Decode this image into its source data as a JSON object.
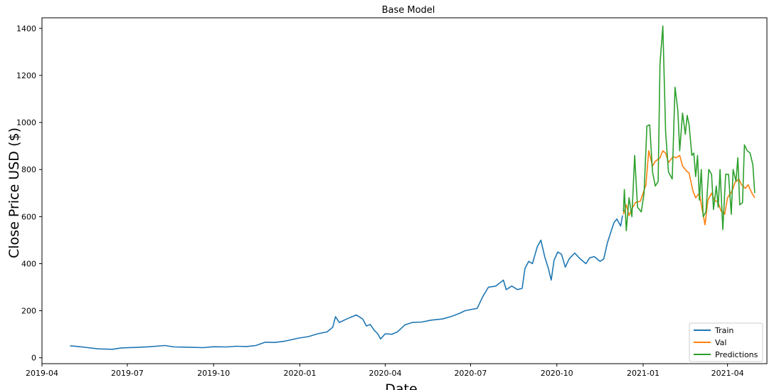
{
  "chart_data": {
    "type": "line",
    "title": "Base Model",
    "xlabel": "Date",
    "ylabel": "Close Price USD ($)",
    "xlim": [
      "2019-04-01",
      "2021-05-13"
    ],
    "ylim": [
      -25,
      1445
    ],
    "x_ticks": [
      "2019-04-01",
      "2019-07-01",
      "2019-10-01",
      "2020-01-01",
      "2020-04-01",
      "2020-07-01",
      "2020-10-01",
      "2021-01-01",
      "2021-04-01"
    ],
    "x_tick_labels": [
      "2019-04",
      "2019-07",
      "2019-10",
      "2020-01",
      "2020-04",
      "2020-07",
      "2020-10",
      "2021-01",
      "2021-04"
    ],
    "y_ticks": [
      0,
      200,
      400,
      600,
      800,
      1000,
      1200,
      1400
    ],
    "y_tick_labels": [
      "0",
      "200",
      "400",
      "600",
      "800",
      "1000",
      "1200",
      "1400"
    ],
    "grid": false,
    "legend_position": "bottom-right",
    "series": [
      {
        "name": "Train",
        "color": "#1f77b4",
        "points": [
          [
            "2019-05-01",
            51
          ],
          [
            "2019-05-10",
            48
          ],
          [
            "2019-05-20",
            43
          ],
          [
            "2019-05-31",
            38
          ],
          [
            "2019-06-15",
            36
          ],
          [
            "2019-06-25",
            42
          ],
          [
            "2019-07-10",
            44
          ],
          [
            "2019-07-25",
            47
          ],
          [
            "2019-08-10",
            52
          ],
          [
            "2019-08-20",
            46
          ],
          [
            "2019-09-05",
            45
          ],
          [
            "2019-09-20",
            43
          ],
          [
            "2019-10-01",
            47
          ],
          [
            "2019-10-15",
            46
          ],
          [
            "2019-10-25",
            49
          ],
          [
            "2019-11-05",
            48
          ],
          [
            "2019-11-15",
            52
          ],
          [
            "2019-11-25",
            66
          ],
          [
            "2019-12-05",
            65
          ],
          [
            "2019-12-15",
            70
          ],
          [
            "2019-12-31",
            84
          ],
          [
            "2020-01-10",
            90
          ],
          [
            "2020-01-20",
            102
          ],
          [
            "2020-01-30",
            110
          ],
          [
            "2020-02-05",
            130
          ],
          [
            "2020-02-08",
            175
          ],
          [
            "2020-02-12",
            150
          ],
          [
            "2020-02-20",
            165
          ],
          [
            "2020-03-01",
            182
          ],
          [
            "2020-03-08",
            165
          ],
          [
            "2020-03-12",
            135
          ],
          [
            "2020-03-16",
            142
          ],
          [
            "2020-03-20",
            118
          ],
          [
            "2020-03-24",
            102
          ],
          [
            "2020-03-27",
            80
          ],
          [
            "2020-04-01",
            102
          ],
          [
            "2020-04-08",
            100
          ],
          [
            "2020-04-14",
            110
          ],
          [
            "2020-04-22",
            140
          ],
          [
            "2020-04-30",
            150
          ],
          [
            "2020-05-10",
            152
          ],
          [
            "2020-05-20",
            160
          ],
          [
            "2020-06-01",
            165
          ],
          [
            "2020-06-10",
            175
          ],
          [
            "2020-06-20",
            190
          ],
          [
            "2020-06-25",
            200
          ],
          [
            "2020-07-01",
            205
          ],
          [
            "2020-07-08",
            210
          ],
          [
            "2020-07-14",
            260
          ],
          [
            "2020-07-20",
            300
          ],
          [
            "2020-07-28",
            305
          ],
          [
            "2020-08-05",
            330
          ],
          [
            "2020-08-08",
            290
          ],
          [
            "2020-08-14",
            305
          ],
          [
            "2020-08-20",
            290
          ],
          [
            "2020-08-25",
            295
          ],
          [
            "2020-08-28",
            380
          ],
          [
            "2020-09-01",
            410
          ],
          [
            "2020-09-05",
            400
          ],
          [
            "2020-09-10",
            470
          ],
          [
            "2020-09-14",
            500
          ],
          [
            "2020-09-18",
            430
          ],
          [
            "2020-09-22",
            380
          ],
          [
            "2020-09-25",
            330
          ],
          [
            "2020-09-28",
            415
          ],
          [
            "2020-10-02",
            450
          ],
          [
            "2020-10-06",
            440
          ],
          [
            "2020-10-10",
            385
          ],
          [
            "2020-10-14",
            420
          ],
          [
            "2020-10-20",
            445
          ],
          [
            "2020-10-26",
            420
          ],
          [
            "2020-11-01",
            400
          ],
          [
            "2020-11-05",
            425
          ],
          [
            "2020-11-10",
            430
          ],
          [
            "2020-11-16",
            410
          ],
          [
            "2020-11-20",
            420
          ],
          [
            "2020-11-24",
            490
          ],
          [
            "2020-11-28",
            540
          ],
          [
            "2020-12-01",
            575
          ],
          [
            "2020-12-04",
            590
          ],
          [
            "2020-12-08",
            560
          ],
          [
            "2020-12-10",
            605
          ]
        ]
      },
      {
        "name": "Val",
        "color": "#ff7f0e",
        "points": [
          [
            "2020-12-11",
            610
          ],
          [
            "2020-12-14",
            650
          ],
          [
            "2020-12-17",
            605
          ],
          [
            "2020-12-21",
            640
          ],
          [
            "2020-12-24",
            660
          ],
          [
            "2020-12-29",
            665
          ],
          [
            "2021-01-04",
            735
          ],
          [
            "2021-01-07",
            880
          ],
          [
            "2021-01-11",
            815
          ],
          [
            "2021-01-14",
            835
          ],
          [
            "2021-01-19",
            850
          ],
          [
            "2021-01-22",
            880
          ],
          [
            "2021-01-25",
            870
          ],
          [
            "2021-01-28",
            830
          ],
          [
            "2021-02-02",
            855
          ],
          [
            "2021-02-05",
            850
          ],
          [
            "2021-02-09",
            860
          ],
          [
            "2021-02-12",
            815
          ],
          [
            "2021-02-16",
            795
          ],
          [
            "2021-02-19",
            785
          ],
          [
            "2021-02-23",
            710
          ],
          [
            "2021-02-26",
            680
          ],
          [
            "2021-03-02",
            700
          ],
          [
            "2021-03-05",
            630
          ],
          [
            "2021-03-08",
            565
          ],
          [
            "2021-03-11",
            670
          ],
          [
            "2021-03-15",
            700
          ],
          [
            "2021-03-18",
            670
          ],
          [
            "2021-03-22",
            660
          ],
          [
            "2021-03-25",
            625
          ],
          [
            "2021-03-29",
            610
          ],
          [
            "2021-04-01",
            680
          ],
          [
            "2021-04-06",
            710
          ],
          [
            "2021-04-09",
            745
          ],
          [
            "2021-04-13",
            760
          ],
          [
            "2021-04-16",
            735
          ],
          [
            "2021-04-20",
            720
          ],
          [
            "2021-04-23",
            735
          ],
          [
            "2021-04-27",
            700
          ],
          [
            "2021-04-30",
            680
          ]
        ]
      },
      {
        "name": "Predictions",
        "color": "#2ca02c",
        "points": [
          [
            "2020-12-11",
            620
          ],
          [
            "2020-12-12",
            715
          ],
          [
            "2020-12-14",
            540
          ],
          [
            "2020-12-17",
            680
          ],
          [
            "2020-12-20",
            600
          ],
          [
            "2020-12-23",
            860
          ],
          [
            "2020-12-26",
            640
          ],
          [
            "2020-12-30",
            620
          ],
          [
            "2021-01-02",
            700
          ],
          [
            "2021-01-05",
            985
          ],
          [
            "2021-01-08",
            990
          ],
          [
            "2021-01-11",
            790
          ],
          [
            "2021-01-14",
            730
          ],
          [
            "2021-01-17",
            750
          ],
          [
            "2021-01-19",
            1250
          ],
          [
            "2021-01-22",
            1410
          ],
          [
            "2021-01-25",
            960
          ],
          [
            "2021-01-28",
            790
          ],
          [
            "2021-02-01",
            760
          ],
          [
            "2021-02-04",
            1150
          ],
          [
            "2021-02-07",
            1050
          ],
          [
            "2021-02-09",
            880
          ],
          [
            "2021-02-12",
            1040
          ],
          [
            "2021-02-15",
            950
          ],
          [
            "2021-02-17",
            1030
          ],
          [
            "2021-02-19",
            990
          ],
          [
            "2021-02-22",
            860
          ],
          [
            "2021-02-24",
            870
          ],
          [
            "2021-02-26",
            770
          ],
          [
            "2021-02-28",
            860
          ],
          [
            "2021-03-02",
            670
          ],
          [
            "2021-03-04",
            800
          ],
          [
            "2021-03-06",
            600
          ],
          [
            "2021-03-09",
            620
          ],
          [
            "2021-03-12",
            800
          ],
          [
            "2021-03-15",
            780
          ],
          [
            "2021-03-17",
            630
          ],
          [
            "2021-03-20",
            730
          ],
          [
            "2021-03-22",
            640
          ],
          [
            "2021-03-24",
            800
          ],
          [
            "2021-03-27",
            545
          ],
          [
            "2021-03-30",
            780
          ],
          [
            "2021-04-02",
            780
          ],
          [
            "2021-04-05",
            610
          ],
          [
            "2021-04-07",
            800
          ],
          [
            "2021-04-10",
            750
          ],
          [
            "2021-04-12",
            850
          ],
          [
            "2021-04-14",
            650
          ],
          [
            "2021-04-17",
            660
          ],
          [
            "2021-04-19",
            905
          ],
          [
            "2021-04-22",
            880
          ],
          [
            "2021-04-25",
            870
          ],
          [
            "2021-04-28",
            820
          ],
          [
            "2021-04-30",
            700
          ]
        ]
      }
    ]
  }
}
